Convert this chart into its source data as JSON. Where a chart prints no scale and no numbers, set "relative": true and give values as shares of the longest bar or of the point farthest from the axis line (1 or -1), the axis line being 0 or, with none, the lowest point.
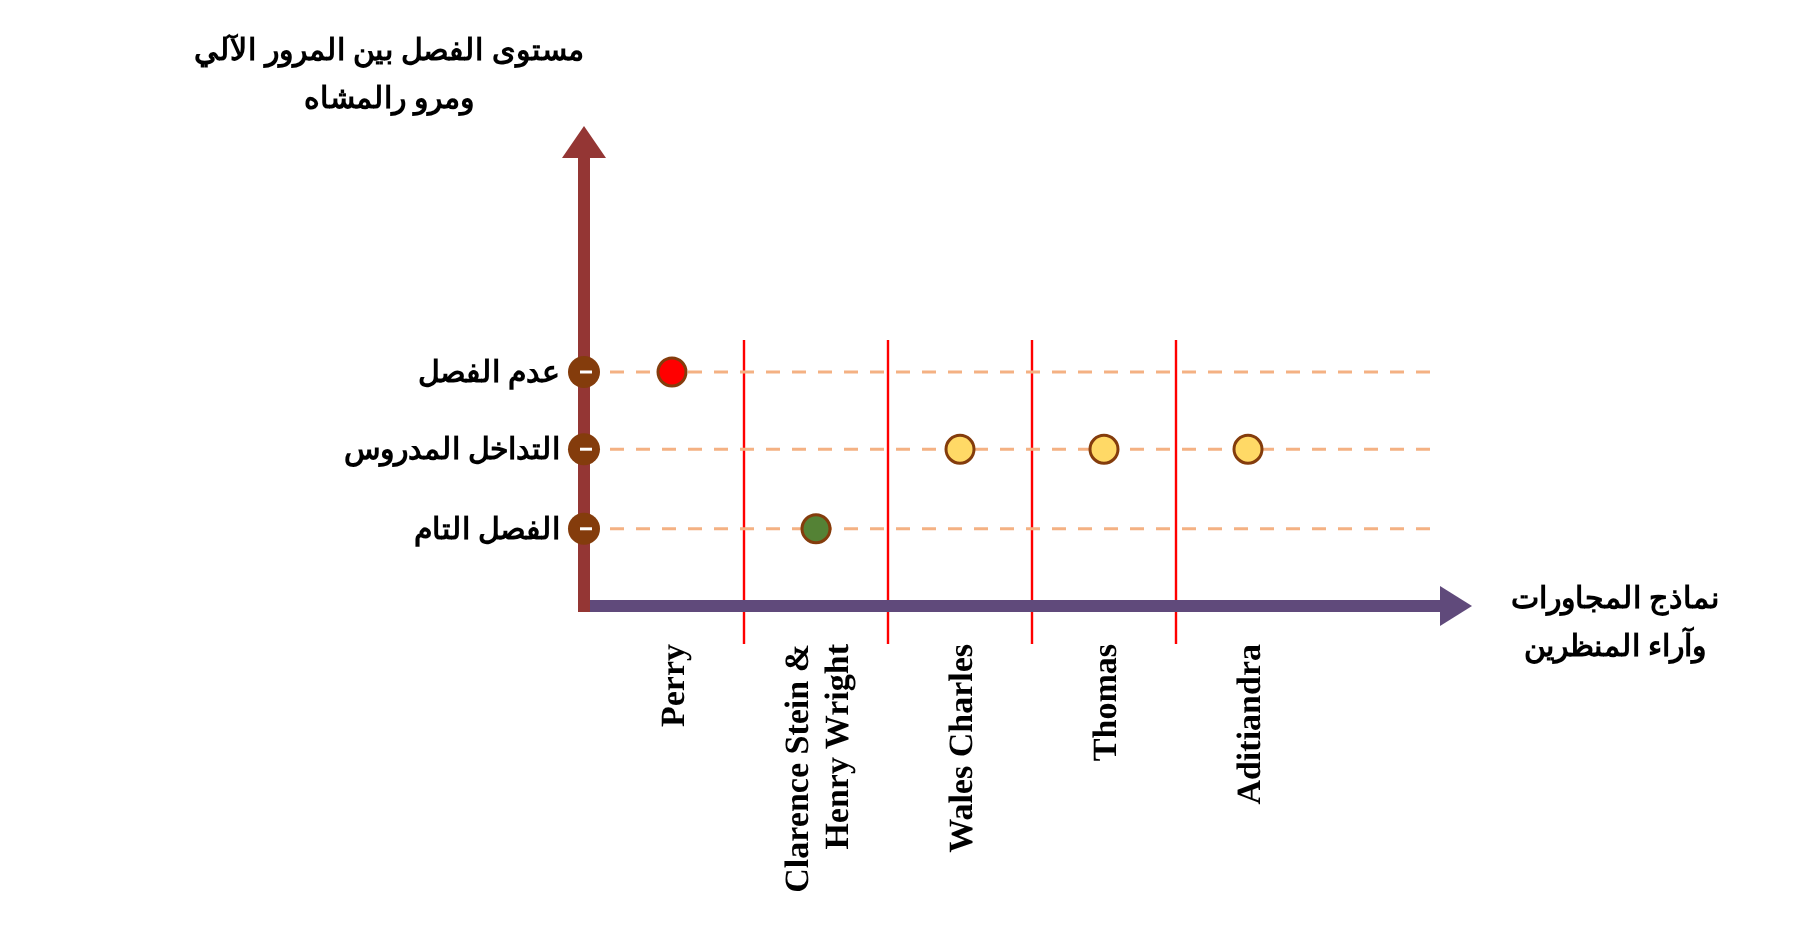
{
  "chart_data": {
    "type": "scatter",
    "relative": true,
    "annotations": [
      "مستوى الفصل بين المرور الآلي ومرو رالمشاه"
    ],
    "xlabel": "نماذج المجاورات وآراء المنظرين",
    "categories": [
      "Perry",
      "Clarence Stein & Henry Wright",
      "Wales Charles",
      "Thomas",
      "Aditiandra"
    ],
    "values": [
      1,
      0.33,
      0.67,
      0.67,
      0.67
    ],
    "colors": [
      "#ff0000",
      "#548235",
      "#ffd966",
      "#ffd966",
      "#ffd966"
    ],
    "ref_lines": [
      {
        "axis": "y",
        "value": 1,
        "label": "عدم الفصل",
        "color": "#f4b183",
        "line_style": "dashed"
      },
      {
        "axis": "y",
        "value": 0.67,
        "label": "التداخل المدروس",
        "color": "#f4b183",
        "line_style": "dashed"
      },
      {
        "axis": "y",
        "value": 0.33,
        "label": "الفصل التام",
        "color": "#f4b183",
        "line_style": "dashed"
      }
    ],
    "grid": "x",
    "marker": "circle"
  }
}
